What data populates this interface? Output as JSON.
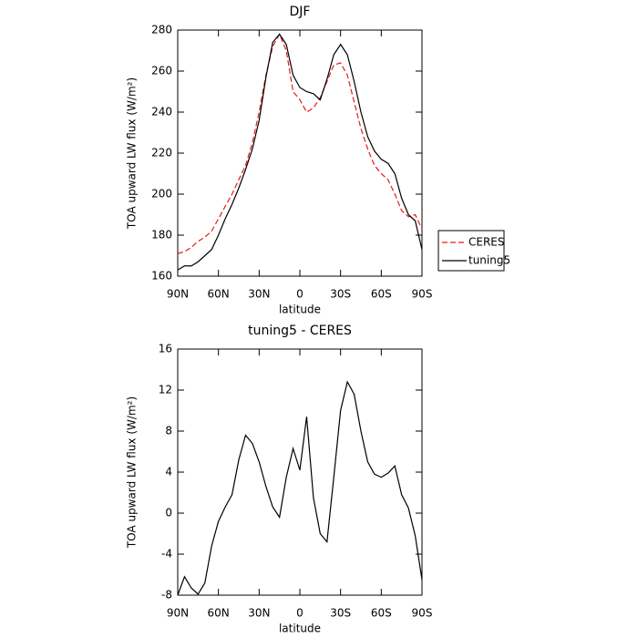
{
  "chart_data": [
    {
      "type": "line",
      "title": "DJF",
      "ylabel": "TOA upward LW flux (W/m²)",
      "xlabel": "latitude",
      "x": [
        90,
        85,
        80,
        75,
        70,
        65,
        60,
        55,
        50,
        45,
        40,
        35,
        30,
        25,
        20,
        15,
        10,
        5,
        0,
        -5,
        -10,
        -15,
        -20,
        -25,
        -30,
        -35,
        -40,
        -45,
        -50,
        -55,
        -60,
        -65,
        -70,
        -75,
        -80,
        -85,
        -90
      ],
      "series": [
        {
          "name": "CERES",
          "color": "#e8191c",
          "linestyle": "dashed",
          "values": [
            171,
            172,
            174,
            177,
            179,
            182,
            188,
            194,
            200,
            207,
            214,
            225,
            240,
            258,
            272,
            278,
            270,
            250,
            246,
            240,
            242,
            247,
            255,
            263,
            264,
            258,
            245,
            232,
            222,
            214,
            210,
            207,
            200,
            192,
            189,
            190,
            183
          ]
        },
        {
          "name": "tuning5",
          "color": "#000000",
          "linestyle": "solid",
          "values": [
            163,
            165,
            165,
            167,
            170,
            173,
            180,
            188,
            195,
            203,
            212,
            222,
            236,
            257,
            274,
            278,
            273,
            258,
            252,
            250,
            249,
            246,
            256,
            268,
            273,
            268,
            255,
            240,
            228,
            221,
            217,
            215,
            210,
            198,
            190,
            187,
            173
          ]
        }
      ],
      "xlim": [
        90,
        -90
      ],
      "xticks": [
        {
          "value": 90,
          "label": "90N"
        },
        {
          "value": 60,
          "label": "60N"
        },
        {
          "value": 30,
          "label": "30N"
        },
        0,
        {
          "value": -30,
          "label": "30S"
        },
        {
          "value": -60,
          "label": "60S"
        },
        {
          "value": -90,
          "label": "90S"
        }
      ],
      "ylim": [
        160,
        280
      ],
      "yticks": [
        160,
        180,
        200,
        220,
        240,
        260,
        280
      ],
      "legend": "right"
    },
    {
      "type": "line",
      "title": "tuning5 - CERES",
      "ylabel": "TOA upward LW flux (W/m²)",
      "xlabel": "latitude",
      "x": [
        90,
        85,
        80,
        75,
        70,
        65,
        60,
        55,
        50,
        45,
        40,
        35,
        30,
        25,
        20,
        15,
        10,
        5,
        0,
        -5,
        -10,
        -15,
        -20,
        -25,
        -30,
        -35,
        -40,
        -45,
        -50,
        -55,
        -60,
        -65,
        -70,
        -75,
        -80,
        -85,
        -90
      ],
      "values": [
        -8,
        -6.2,
        -7.3,
        -7.9,
        -6.8,
        -3.2,
        -0.8,
        0.6,
        1.8,
        5.2,
        7.6,
        6.8,
        5.0,
        2.6,
        0.6,
        -0.4,
        3.5,
        6.3,
        4.2,
        9.4,
        1.5,
        -2.0,
        -2.8,
        3.5,
        10.0,
        12.8,
        11.6,
        8.0,
        5.0,
        3.8,
        3.5,
        3.9,
        4.6,
        1.8,
        0.5,
        -2.2,
        -6.5
      ],
      "color": "#000000",
      "xlim": [
        90,
        -90
      ],
      "xticks": [
        {
          "value": 90,
          "label": "90N"
        },
        {
          "value": 60,
          "label": "60N"
        },
        {
          "value": 30,
          "label": "30N"
        },
        0,
        {
          "value": -30,
          "label": "30S"
        },
        {
          "value": -60,
          "label": "60S"
        },
        {
          "value": -90,
          "label": "90S"
        }
      ],
      "ylim": [
        -8,
        16
      ],
      "yticks": [
        -8,
        -4,
        0,
        4,
        8,
        12,
        16
      ]
    }
  ]
}
